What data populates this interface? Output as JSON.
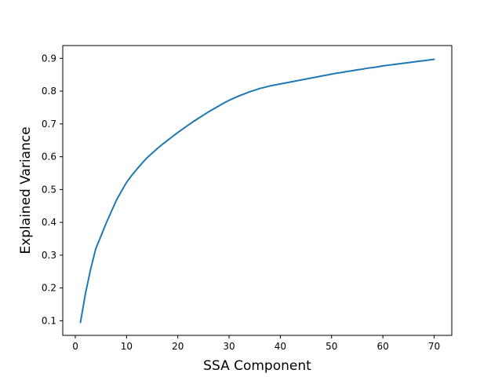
{
  "chart_data": {
    "type": "line",
    "title": "",
    "xlabel": "SSA Component",
    "ylabel": "Explained Variance",
    "xlim": [
      -2.45,
      73.45
    ],
    "ylim": [
      0.0555,
      0.939
    ],
    "xticks": [
      0,
      10,
      20,
      30,
      40,
      50,
      60,
      70
    ],
    "yticks": [
      0.1,
      0.2,
      0.3,
      0.4,
      0.5,
      0.6,
      0.7,
      0.8,
      0.9
    ],
    "grid": false,
    "legend": "none",
    "series": [
      {
        "color": "#1f77b4",
        "x": [
          1,
          2,
          3,
          4,
          5,
          6,
          7,
          8,
          9,
          10,
          11,
          12,
          13,
          14,
          15,
          16,
          17,
          18,
          19,
          20,
          21,
          22,
          23,
          24,
          25,
          26,
          27,
          28,
          29,
          30,
          31,
          32,
          33,
          34,
          35,
          36,
          37,
          38,
          39,
          40,
          41,
          42,
          43,
          44,
          45,
          46,
          47,
          48,
          49,
          50,
          51,
          52,
          53,
          54,
          55,
          56,
          57,
          58,
          59,
          60,
          61,
          62,
          63,
          64,
          65,
          66,
          67,
          68,
          69,
          70
        ],
        "y": [
          0.095,
          0.185,
          0.258,
          0.32,
          0.358,
          0.397,
          0.432,
          0.467,
          0.495,
          0.522,
          0.543,
          0.562,
          0.58,
          0.597,
          0.611,
          0.625,
          0.638,
          0.65,
          0.662,
          0.674,
          0.685,
          0.696,
          0.707,
          0.717,
          0.727,
          0.737,
          0.746,
          0.755,
          0.764,
          0.772,
          0.779,
          0.786,
          0.792,
          0.798,
          0.803,
          0.808,
          0.812,
          0.816,
          0.819,
          0.822,
          0.825,
          0.828,
          0.831,
          0.834,
          0.837,
          0.84,
          0.843,
          0.846,
          0.849,
          0.852,
          0.855,
          0.857,
          0.86,
          0.862,
          0.865,
          0.867,
          0.87,
          0.872,
          0.874,
          0.877,
          0.879,
          0.881,
          0.883,
          0.885,
          0.887,
          0.889,
          0.891,
          0.893,
          0.895,
          0.897
        ]
      }
    ]
  }
}
